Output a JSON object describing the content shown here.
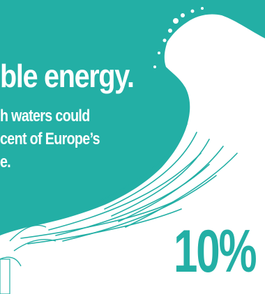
{
  "headline": "ble energy.",
  "subtitle_lines": [
    "h waters could",
    "cent of Europe’s",
    "e."
  ],
  "stat": "10%",
  "colors": {
    "background": "#23afa5",
    "wave": "#ffffff",
    "text": "#ffffff",
    "stat": "#23afa5"
  }
}
